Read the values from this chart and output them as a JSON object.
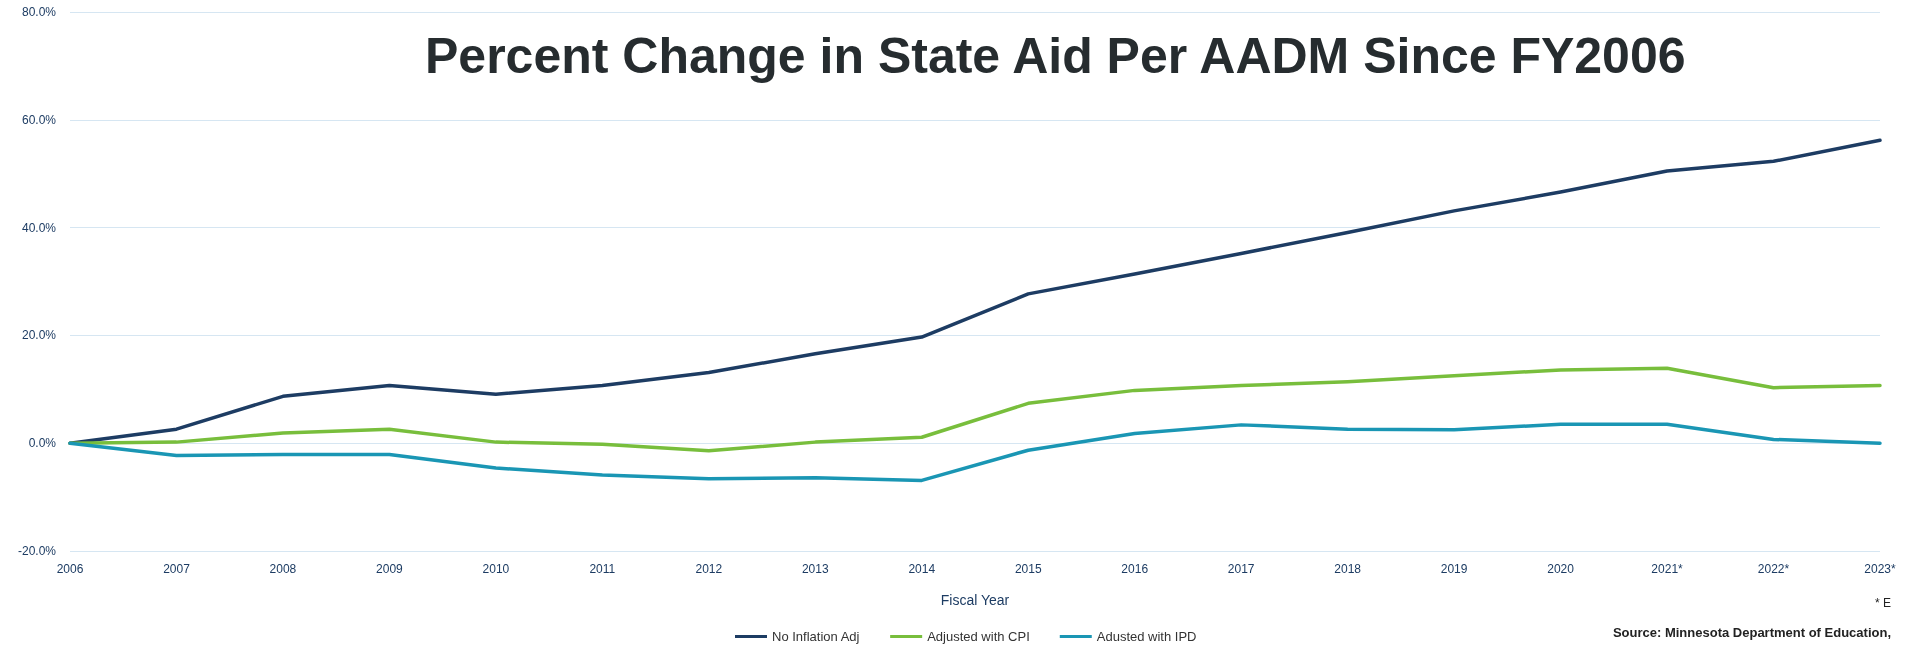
{
  "chart_data": {
    "type": "line",
    "title": "Percent Change in State Aid Per AADM Since FY2006",
    "xlabel": "Fiscal Year",
    "categories": [
      "2006",
      "2007",
      "2008",
      "2009",
      "2010",
      "2011",
      "2012",
      "2013",
      "2014",
      "2015",
      "2016",
      "2017",
      "2018",
      "2019",
      "2020",
      "2021*",
      "2022*",
      "2023*"
    ],
    "series": [
      {
        "name": "No Inflation Adj",
        "color": "#1d3c63",
        "values": [
          0,
          2.6,
          8.7,
          10.7,
          9.1,
          10.7,
          13.1,
          16.6,
          19.7,
          27.7,
          31.4,
          35.2,
          39.1,
          43.1,
          46.6,
          50.5,
          52.3,
          56.2
        ]
      },
      {
        "name": "Adjusted with CPI",
        "color": "#78be3c",
        "values": [
          0,
          0.2,
          1.9,
          2.6,
          0.2,
          -0.2,
          -1.4,
          0.2,
          1.1,
          7.4,
          9.8,
          10.7,
          11.4,
          12.5,
          13.6,
          13.9,
          10.3,
          10.7
        ]
      },
      {
        "name": "Adusted with IPD",
        "color": "#1a96b4",
        "values": [
          0,
          -2.3,
          -2.1,
          -2.1,
          -4.6,
          -5.9,
          -6.6,
          -6.4,
          -6.9,
          -1.3,
          1.8,
          3.4,
          2.6,
          2.5,
          3.5,
          3.5,
          0.7,
          0
        ]
      }
    ],
    "ylim": [
      -20,
      80
    ],
    "yticks": [
      {
        "value": -20,
        "label": "-20.0%"
      },
      {
        "value": 0,
        "label": "0.0%"
      },
      {
        "value": 20,
        "label": "20.0%"
      },
      {
        "value": 40,
        "label": "40.0%"
      },
      {
        "value": 60,
        "label": "60.0%"
      },
      {
        "value": 80,
        "label": "80.0%"
      }
    ],
    "grid": "y",
    "legend": "bottom",
    "annotations": [
      "* E",
      "Source: Minnesota Department of Education,"
    ]
  }
}
